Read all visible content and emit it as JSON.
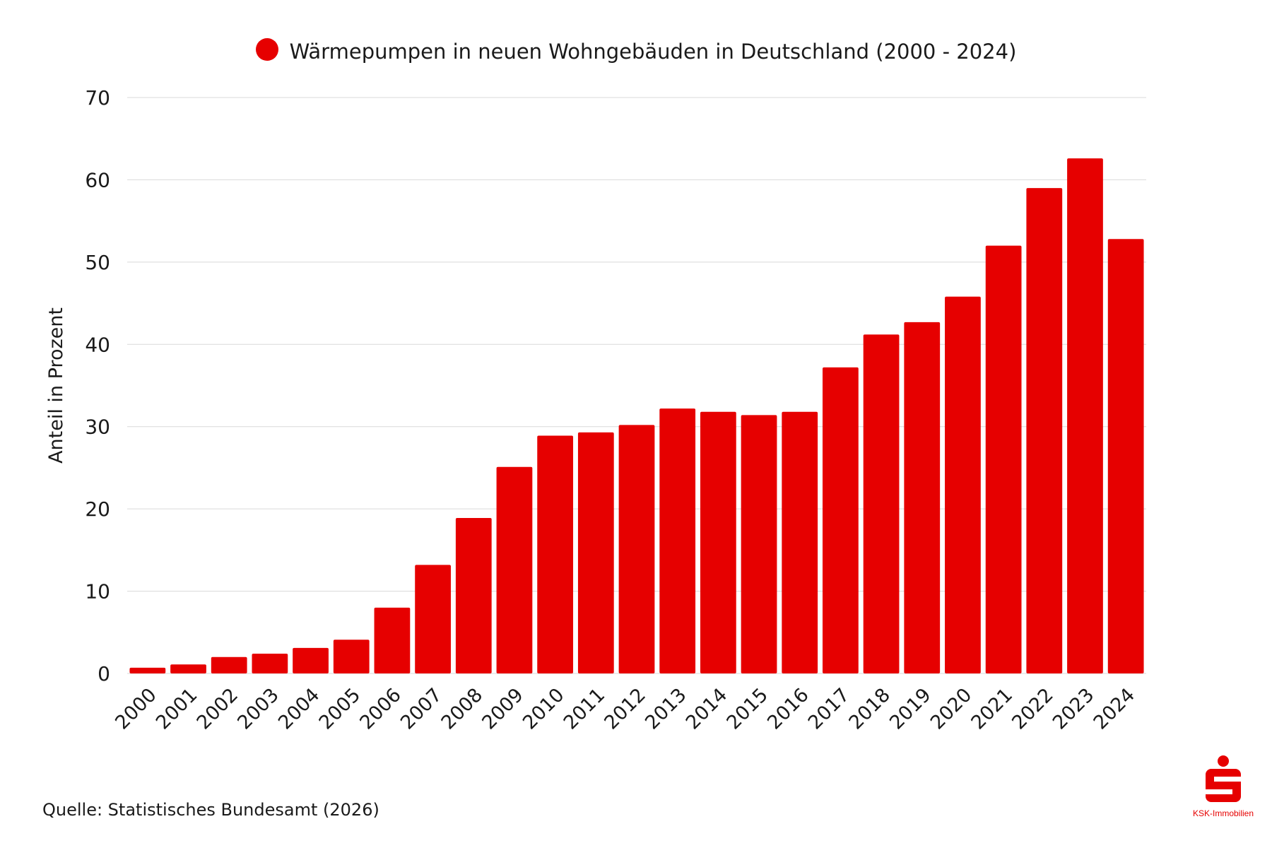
{
  "legend": {
    "label": "Wärmepumpen in neuen Wohngebäuden in Deutschland (2000 - 2024)"
  },
  "source": "Quelle: Statistisches Bundesamt (2026)",
  "logo": {
    "text": "KSK-Immobilien"
  },
  "colors": {
    "bar": "#e60000",
    "grid": "#d9d9d9",
    "text": "#1a1a1a"
  },
  "chart_data": {
    "type": "bar",
    "title": "",
    "xlabel": "",
    "ylabel": "Anteil in Prozent",
    "ylim": [
      0,
      70
    ],
    "yticks": [
      0,
      10,
      20,
      30,
      40,
      50,
      60,
      70
    ],
    "grid": true,
    "legend_position": "top-center",
    "categories": [
      "2000",
      "2001",
      "2002",
      "2003",
      "2004",
      "2005",
      "2006",
      "2007",
      "2008",
      "2009",
      "2010",
      "2011",
      "2012",
      "2013",
      "2014",
      "2015",
      "2016",
      "2017",
      "2018",
      "2019",
      "2020",
      "2021",
      "2022",
      "2023",
      "2024"
    ],
    "series": [
      {
        "name": "Wärmepumpen in neuen Wohngebäuden in Deutschland (2000 - 2024)",
        "values": [
          0.7,
          1.1,
          2.0,
          2.4,
          3.1,
          4.1,
          8.0,
          13.2,
          18.9,
          25.1,
          28.9,
          29.3,
          30.2,
          32.2,
          31.8,
          31.4,
          31.8,
          37.2,
          41.2,
          42.7,
          45.8,
          52.0,
          59.0,
          62.6,
          52.8
        ]
      }
    ]
  }
}
